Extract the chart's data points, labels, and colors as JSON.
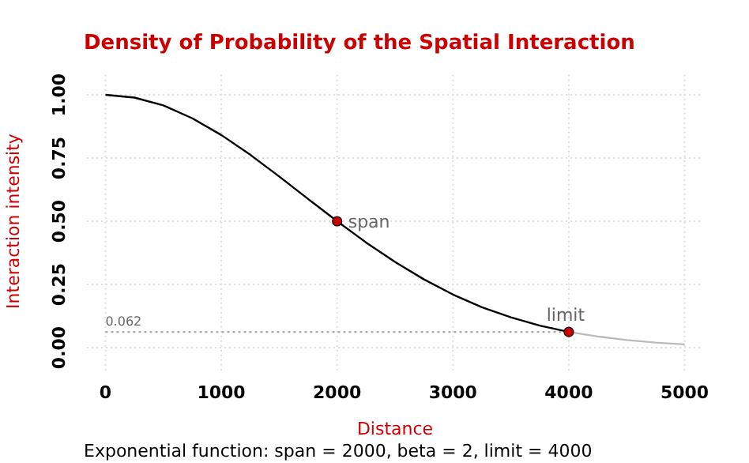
{
  "chart_data": {
    "type": "line",
    "title": "Density of Probability of the Spatial Interaction",
    "xlabel": "Distance",
    "ylabel": "Interaction intensity",
    "xlim": [
      -160,
      5160
    ],
    "ylim": [
      -0.09,
      1.09
    ],
    "xticks": [
      0,
      1000,
      2000,
      3000,
      4000,
      5000
    ],
    "yticks": [
      {
        "value": 0,
        "label": "0.00"
      },
      {
        "value": 0.25,
        "label": "0.25"
      },
      {
        "value": 0.5,
        "label": "0.50"
      },
      {
        "value": 0.75,
        "label": "0.75"
      },
      {
        "value": 1,
        "label": "1.00"
      }
    ],
    "grid": true,
    "marker": "none",
    "line_style": "solid",
    "series": [
      {
        "color": "#000000",
        "x": [
          0,
          250,
          500,
          750,
          1000,
          1250,
          1500,
          1750,
          2000,
          2250,
          2500,
          2750,
          3000,
          3250,
          3500,
          3750,
          4000
        ],
        "values": [
          1,
          0.989,
          0.958,
          0.907,
          0.841,
          0.763,
          0.677,
          0.588,
          0.5,
          0.416,
          0.339,
          0.27,
          0.21,
          0.16,
          0.12,
          0.087,
          0.062
        ]
      },
      {
        "color": "#bbbbbb",
        "x": [
          4000,
          4250,
          4500,
          4750,
          5000
        ],
        "values": [
          0.062,
          0.044,
          0.03,
          0.02,
          0.013
        ]
      },
      {
        "color": "#aaaaaa",
        "line_style": "dotted",
        "x": [
          0,
          4000
        ],
        "values": [
          0.062,
          0.062
        ]
      },
      {
        "type": "scatter",
        "color": "#cc0000",
        "marker": "circle",
        "x": [
          2000,
          4000
        ],
        "values": [
          0.5,
          0.062
        ]
      }
    ],
    "annotations": [
      {
        "text": "span",
        "x": 2000,
        "y": 0.5
      },
      {
        "text": "limit",
        "x": 4000,
        "y": 0.062
      },
      {
        "text": "0.062",
        "x": 0,
        "y": 0.062
      },
      "Exponential function: span = 2000, beta = 2, limit = 4000"
    ]
  }
}
